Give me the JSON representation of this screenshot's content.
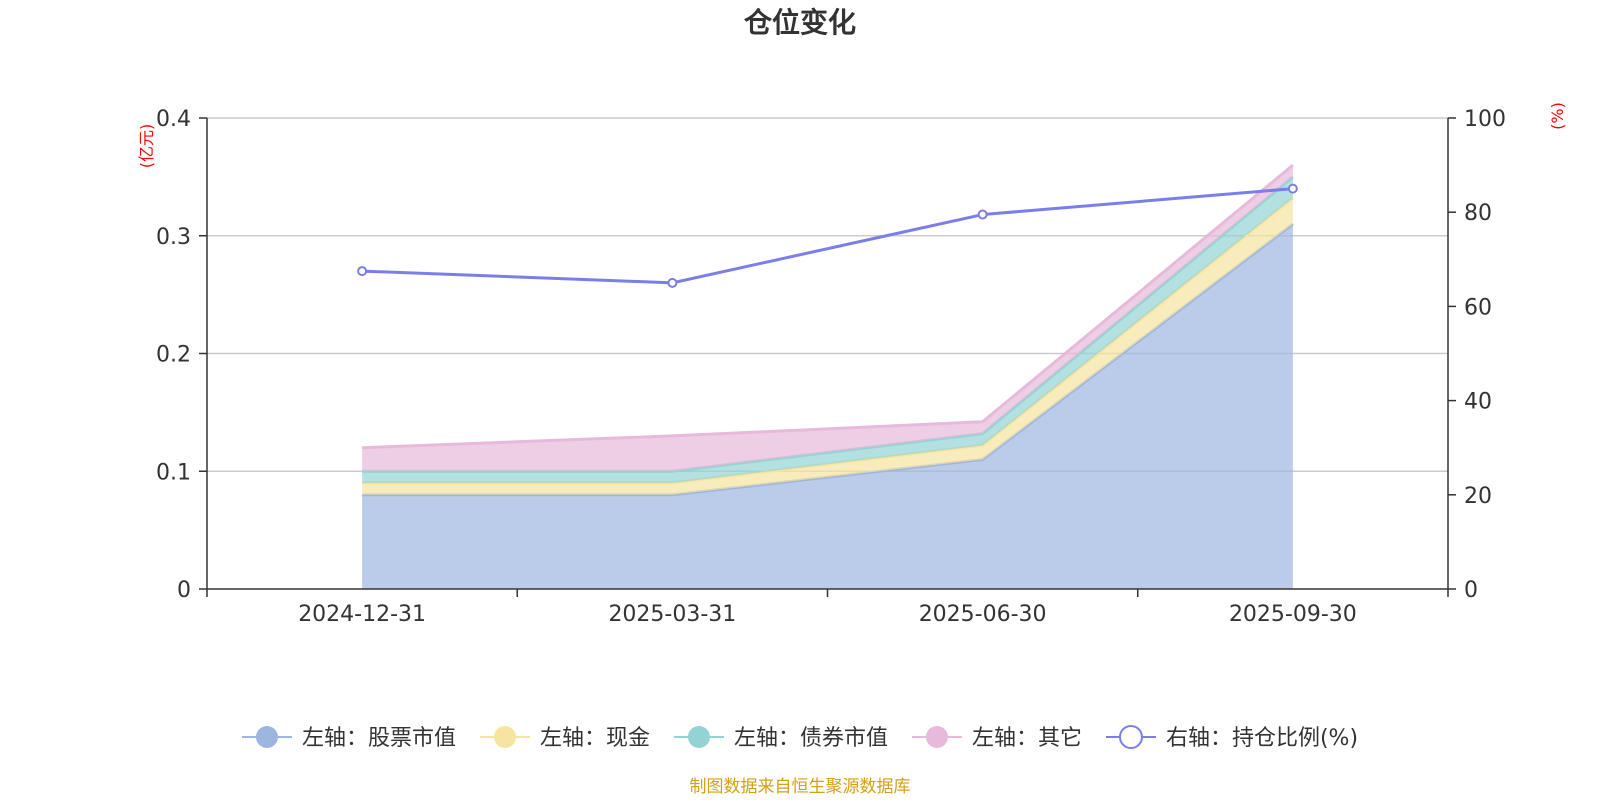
{
  "chart_data": {
    "type": "area",
    "title": "仓位变化",
    "categories": [
      "2024-12-31",
      "2025-03-31",
      "2025-06-30",
      "2025-09-30"
    ],
    "stacked": true,
    "left_axis": {
      "unit_label": "(亿元)",
      "range": [
        0,
        0.4
      ],
      "ticks": [
        "0",
        "0.1",
        "0.2",
        "0.3",
        "0.4"
      ]
    },
    "right_axis": {
      "unit_label": "(%)",
      "range": [
        0,
        100
      ],
      "ticks": [
        "0",
        "20",
        "40",
        "60",
        "80",
        "100"
      ]
    },
    "series": [
      {
        "name": "左轴：股票市值",
        "axis": "left",
        "type": "area",
        "color": "#9db6e0",
        "values": [
          0.08,
          0.08,
          0.11,
          0.31
        ]
      },
      {
        "name": "左轴：现金",
        "axis": "left",
        "type": "area",
        "color": "#f7e4a0",
        "values": [
          0.01,
          0.01,
          0.012,
          0.022
        ]
      },
      {
        "name": "左轴：债券市值",
        "axis": "left",
        "type": "area",
        "color": "#93d3d3",
        "values": [
          0.01,
          0.01,
          0.01,
          0.018
        ]
      },
      {
        "name": "左轴：其它",
        "axis": "left",
        "type": "area",
        "color": "#e7b9da",
        "values": [
          0.02,
          0.03,
          0.01,
          0.01
        ]
      },
      {
        "name": "右轴：持仓比例(%)",
        "axis": "right",
        "type": "line",
        "color": "#7b7ee8",
        "values": [
          67.5,
          65,
          79.5,
          85
        ]
      }
    ],
    "grid": true,
    "legend_position": "bottom"
  },
  "footer": {
    "source": "制图数据来自恒生聚源数据库"
  }
}
